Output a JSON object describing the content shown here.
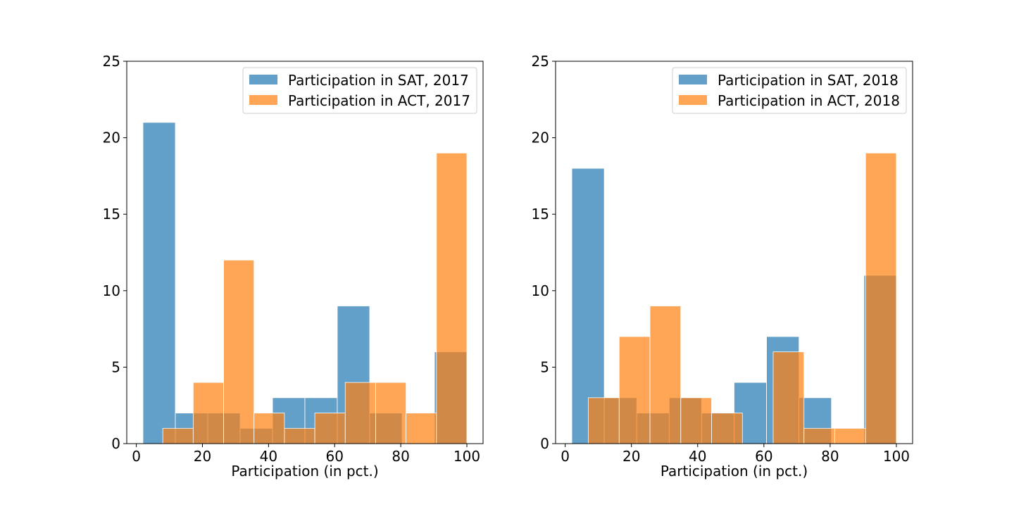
{
  "chart_data": [
    {
      "type": "histogram",
      "title": "",
      "xlabel": "Participation (in pct.)",
      "ylabel": "",
      "xlim": [
        -2.9,
        104.9
      ],
      "ylim": [
        0,
        25
      ],
      "xticks": [
        0,
        20,
        40,
        60,
        80,
        100
      ],
      "yticks": [
        0,
        5,
        10,
        15,
        20,
        25
      ],
      "grid": false,
      "legend_position": "top-right",
      "series": [
        {
          "name": "Participation in SAT, 2017",
          "color": "#1f77b4",
          "bin_edges": [
            2,
            11.8,
            21.6,
            31.4,
            41.2,
            51,
            60.8,
            70.6,
            80.4,
            90.2,
            100
          ],
          "counts": [
            21,
            2,
            2,
            1,
            3,
            3,
            9,
            2,
            0,
            6
          ]
        },
        {
          "name": "Participation in ACT, 2017",
          "color": "#ff7f0e",
          "bin_edges": [
            8,
            17.2,
            26.4,
            35.6,
            44.8,
            54,
            63.2,
            72.4,
            81.6,
            90.8,
            100
          ],
          "counts": [
            1,
            4,
            12,
            2,
            1,
            2,
            4,
            4,
            2,
            19
          ]
        }
      ]
    },
    {
      "type": "histogram",
      "title": "",
      "xlabel": "Participation (in pct.)",
      "ylabel": "",
      "xlim": [
        -2.9,
        104.9
      ],
      "ylim": [
        0,
        25
      ],
      "xticks": [
        0,
        20,
        40,
        60,
        80,
        100
      ],
      "yticks": [
        0,
        5,
        10,
        15,
        20,
        25
      ],
      "grid": false,
      "legend_position": "top-right",
      "series": [
        {
          "name": "Participation in SAT, 2018",
          "color": "#1f77b4",
          "bin_edges": [
            2,
            11.8,
            21.6,
            31.4,
            41.2,
            51,
            60.8,
            70.6,
            80.4,
            90.2,
            100
          ],
          "counts": [
            18,
            3,
            2,
            3,
            2,
            4,
            7,
            3,
            0,
            11
          ]
        },
        {
          "name": "Participation in ACT, 2018",
          "color": "#ff7f0e",
          "bin_edges": [
            7,
            16.3,
            25.6,
            34.9,
            44.2,
            53.5,
            62.8,
            72.1,
            81.4,
            90.7,
            100
          ],
          "counts": [
            3,
            7,
            9,
            3,
            2,
            0,
            6,
            1,
            1,
            19
          ]
        }
      ]
    }
  ]
}
